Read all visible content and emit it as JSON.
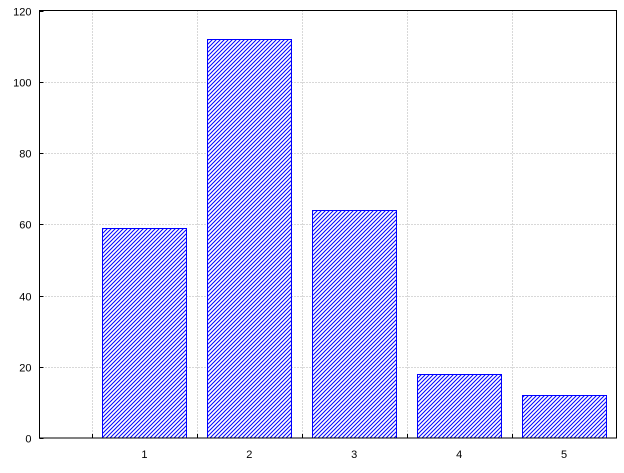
{
  "chart_data": {
    "type": "bar",
    "categories": [
      "1",
      "2",
      "3",
      "4",
      "5"
    ],
    "x": [
      1,
      2,
      3,
      4,
      5
    ],
    "values": [
      59,
      112,
      64,
      18,
      12
    ],
    "title": "",
    "xlabel": "",
    "ylabel": "",
    "xlim": [
      0,
      5.5
    ],
    "ylim": [
      0,
      120
    ],
    "yticks": [
      "0",
      "20",
      "40",
      "60",
      "80",
      "100",
      "120"
    ],
    "grid": true,
    "bar_fill": "diagonal hatch",
    "colors": {
      "bar": "#0000ff",
      "grid": "#b0b0b0",
      "axis": "#000000"
    }
  }
}
